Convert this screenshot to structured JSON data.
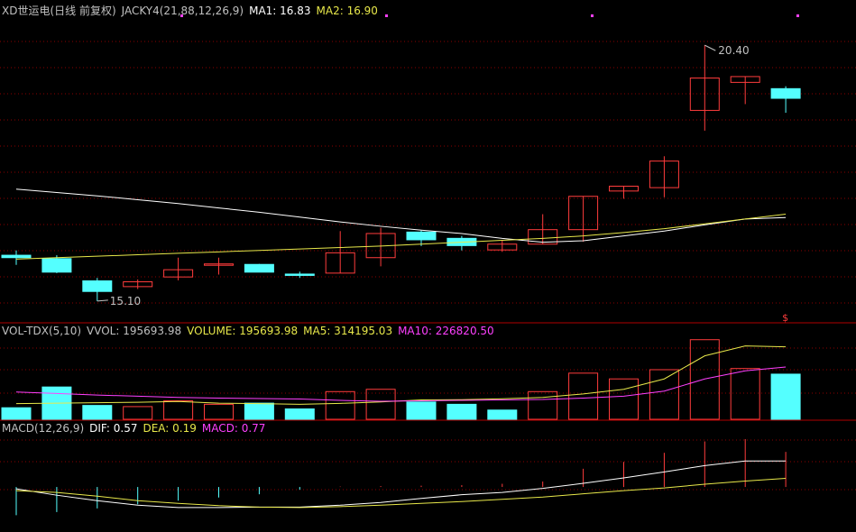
{
  "header": {
    "title": "XD世运电(日线 前复权)",
    "indicator": "JACKY4(21,88,12,26,9)",
    "ma1": "MA1: 16.83",
    "ma2": "MA2: 16.90"
  },
  "volume_header": {
    "name": "VOL-TDX(5,10)",
    "vvol": "VVOL: 195693.98",
    "volume": "VOLUME: 195693.98",
    "ma5": "MA5: 314195.03",
    "ma10": "MA10: 226820.50"
  },
  "macd_header": {
    "name": "MACD(12,26,9)",
    "dif": "DIF: 0.57",
    "dea": "DEA: 0.19",
    "macd": "MACD: 0.77"
  },
  "price_labels": {
    "high": "20.40",
    "low": "15.10",
    "marker": "$"
  },
  "colors": {
    "up": "#ff3c3c",
    "down": "#54ffff",
    "grid": "#8b0000",
    "ma1": "#ffffff",
    "ma2": "#e8e84a",
    "ma5": "#e8e84a",
    "ma10": "#ff40ff",
    "dif": "#ffffff",
    "dea": "#e8e84a",
    "marker": "#ff40ff"
  },
  "chart_data": [
    {
      "type": "candlestick",
      "title": "XD世运电(日线 前复权)",
      "ylim": [
        14.8,
        21.0
      ],
      "series": [
        {
          "open": 16.05,
          "close": 16.0,
          "high": 16.15,
          "low": 15.85
        },
        {
          "open": 15.98,
          "close": 15.7,
          "high": 16.05,
          "low": 15.68
        },
        {
          "open": 15.52,
          "close": 15.3,
          "high": 15.58,
          "low": 15.1
        },
        {
          "open": 15.4,
          "close": 15.5,
          "high": 15.55,
          "low": 15.35
        },
        {
          "open": 15.6,
          "close": 15.75,
          "high": 16.0,
          "low": 15.53
        },
        {
          "open": 15.85,
          "close": 15.87,
          "high": 16.0,
          "low": 15.65
        },
        {
          "open": 15.86,
          "close": 15.7,
          "high": 15.87,
          "low": 15.7
        },
        {
          "open": 15.66,
          "close": 15.65,
          "high": 15.71,
          "low": 15.58
        },
        {
          "open": 15.68,
          "close": 16.1,
          "high": 16.55,
          "low": 15.68
        },
        {
          "open": 16.0,
          "close": 16.5,
          "high": 16.62,
          "low": 15.82
        },
        {
          "open": 16.53,
          "close": 16.37,
          "high": 16.56,
          "low": 16.24
        },
        {
          "open": 16.4,
          "close": 16.25,
          "high": 16.45,
          "low": 16.15
        },
        {
          "open": 16.16,
          "close": 16.28,
          "high": 16.35,
          "low": 16.12
        },
        {
          "open": 16.28,
          "close": 16.58,
          "high": 16.9,
          "low": 16.28
        },
        {
          "open": 16.58,
          "close": 17.27,
          "high": 17.27,
          "low": 16.33
        },
        {
          "open": 17.38,
          "close": 17.48,
          "high": 17.48,
          "low": 17.22
        },
        {
          "open": 17.45,
          "close": 18.0,
          "high": 18.1,
          "low": 17.25
        },
        {
          "open": 19.05,
          "close": 19.72,
          "high": 20.4,
          "low": 18.63
        },
        {
          "open": 19.63,
          "close": 19.75,
          "high": 19.75,
          "low": 19.18
        },
        {
          "open": 19.5,
          "close": 19.3,
          "high": 19.55,
          "low": 19.0
        }
      ],
      "ma1": [
        17.42,
        17.35,
        17.28,
        17.2,
        17.12,
        17.03,
        16.94,
        16.84,
        16.74,
        16.65,
        16.57,
        16.5,
        16.4,
        16.32,
        16.35,
        16.45,
        16.55,
        16.68,
        16.8,
        16.83
      ],
      "ma2": [
        15.97,
        16.0,
        16.03,
        16.06,
        16.09,
        16.12,
        16.15,
        16.18,
        16.21,
        16.24,
        16.28,
        16.32,
        16.36,
        16.4,
        16.45,
        16.52,
        16.6,
        16.7,
        16.8,
        16.9
      ]
    },
    {
      "type": "bar",
      "title": "VOL-TDX(5,10)",
      "ylim": [
        0,
        340000
      ],
      "values": [
        50000,
        140000,
        60000,
        55000,
        80000,
        65000,
        70000,
        45000,
        120000,
        130000,
        75000,
        65000,
        40000,
        120000,
        200000,
        175000,
        215000,
        345000,
        220000,
        195693.98
      ],
      "up": [
        false,
        false,
        false,
        true,
        true,
        true,
        false,
        false,
        true,
        true,
        false,
        false,
        false,
        true,
        true,
        true,
        true,
        true,
        true,
        false
      ],
      "ma5": [
        68000,
        70000,
        72000,
        74000,
        77000,
        70000,
        68000,
        65000,
        69000,
        75000,
        84000,
        85000,
        89000,
        95000,
        110000,
        130000,
        175000,
        275000,
        318000,
        314195.03
      ],
      "ma10": [
        118000,
        112000,
        105000,
        100000,
        95000,
        92000,
        90000,
        88000,
        82000,
        78000,
        80000,
        82000,
        84000,
        86000,
        92000,
        100000,
        122000,
        175000,
        210000,
        226820.5
      ]
    },
    {
      "type": "bar",
      "title": "MACD(12,26,9)",
      "ylim": [
        -0.75,
        1.05
      ],
      "values": [
        -0.62,
        -0.55,
        -0.47,
        -0.38,
        -0.3,
        -0.23,
        -0.16,
        -0.06,
        0.01,
        0.02,
        0.03,
        0.04,
        0.07,
        0.12,
        0.4,
        0.55,
        0.75,
        1.0,
        1.05,
        0.77
      ],
      "dif": [
        -0.04,
        -0.18,
        -0.3,
        -0.4,
        -0.45,
        -0.45,
        -0.44,
        -0.44,
        -0.4,
        -0.34,
        -0.25,
        -0.17,
        -0.12,
        -0.03,
        0.08,
        0.2,
        0.33,
        0.47,
        0.57,
        0.57
      ],
      "dea": [
        -0.08,
        -0.12,
        -0.2,
        -0.3,
        -0.36,
        -0.41,
        -0.44,
        -0.45,
        -0.43,
        -0.4,
        -0.36,
        -0.32,
        -0.27,
        -0.22,
        -0.15,
        -0.08,
        -0.02,
        0.06,
        0.13,
        0.19
      ]
    }
  ]
}
